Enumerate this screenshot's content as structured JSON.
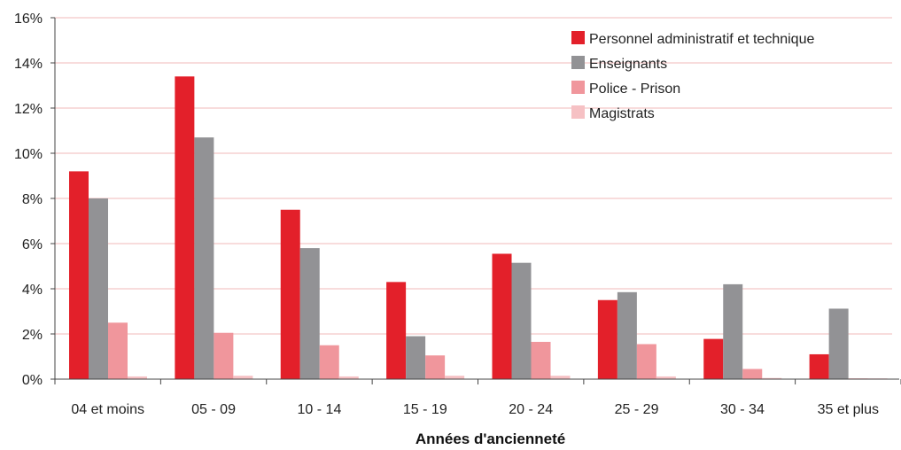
{
  "chart_data": {
    "type": "bar",
    "title": "",
    "xlabel": "Années d'ancienneté",
    "ylabel": "",
    "ylim": [
      0,
      16
    ],
    "yticks": [
      0,
      2,
      4,
      6,
      8,
      10,
      12,
      14,
      16
    ],
    "ytick_suffix": "%",
    "grid": true,
    "legend_position": "top-right",
    "categories": [
      "04 et  moins",
      "05 - 09",
      "10 - 14",
      "15 - 19",
      "20 - 24",
      "25 - 29",
      "30 - 34",
      "35 et plus"
    ],
    "series": [
      {
        "name": "Personnel administratif et technique",
        "color": "#e3202a",
        "values": [
          9.2,
          13.4,
          7.5,
          4.3,
          5.55,
          3.5,
          1.78,
          1.1
        ]
      },
      {
        "name": "Enseignants",
        "color": "#929295",
        "values": [
          8.0,
          10.7,
          5.8,
          1.9,
          5.15,
          3.85,
          4.2,
          3.12
        ]
      },
      {
        "name": "Police - Prison",
        "color": "#f0969c",
        "values": [
          2.5,
          2.05,
          1.5,
          1.05,
          1.65,
          1.55,
          0.45,
          0.03
        ]
      },
      {
        "name": "Magistrats",
        "color": "#f6c1c4",
        "values": [
          0.12,
          0.15,
          0.12,
          0.15,
          0.15,
          0.12,
          0.05,
          0.03
        ]
      }
    ]
  }
}
